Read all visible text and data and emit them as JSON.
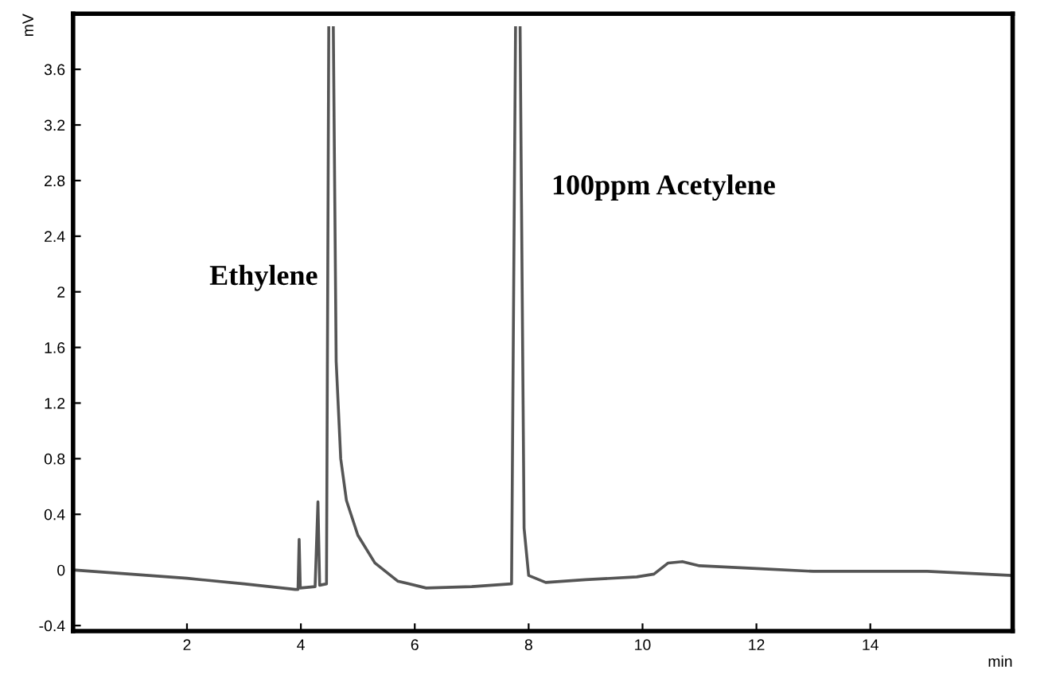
{
  "chart_data": {
    "type": "line",
    "xlabel": "min",
    "ylabel": "mV",
    "x": [
      0,
      1,
      2,
      3,
      3.9,
      3.95,
      3.97,
      3.99,
      4.25,
      4.3,
      4.33,
      4.45,
      4.49,
      4.5,
      4.56,
      4.57,
      4.62,
      4.7,
      4.8,
      5.0,
      5.3,
      5.7,
      6.2,
      7.0,
      7.7,
      7.77,
      7.78,
      7.84,
      7.85,
      7.92,
      8.0,
      8.3,
      9.0,
      9.9,
      10.2,
      10.45,
      10.7,
      11.0,
      12.0,
      13.0,
      14.0,
      15.0,
      16.0,
      16.5
    ],
    "series": [
      {
        "color": "#555555",
        "values": [
          0.0,
          -0.03,
          -0.06,
          -0.1,
          -0.14,
          -0.14,
          0.22,
          -0.13,
          -0.12,
          0.49,
          -0.11,
          -0.1,
          3.9,
          null,
          null,
          3.9,
          1.5,
          0.8,
          0.5,
          0.25,
          0.05,
          -0.08,
          -0.13,
          -0.12,
          -0.1,
          3.9,
          null,
          null,
          3.9,
          0.3,
          -0.04,
          -0.09,
          -0.07,
          -0.05,
          -0.03,
          0.05,
          0.06,
          0.03,
          0.01,
          -0.01,
          -0.01,
          -0.01,
          -0.03,
          -0.04
        ]
      }
    ],
    "xlim": [
      0,
      16.5
    ],
    "ylim": [
      -0.44,
      4.0
    ],
    "xticks": [
      2,
      4,
      6,
      8,
      10,
      12,
      14
    ],
    "yticks": [
      -0.4,
      0,
      0.4,
      0.8,
      1.2,
      1.6,
      2,
      2.4,
      2.8,
      3.2,
      3.6
    ],
    "grid": false,
    "marker": "none",
    "line_style": "solid",
    "annotations": [
      {
        "text": "Ethylene",
        "x": 4.5,
        "y": 2.1
      },
      {
        "text": "100ppm Acetylene",
        "x": 7.8,
        "y": 2.75
      }
    ]
  }
}
